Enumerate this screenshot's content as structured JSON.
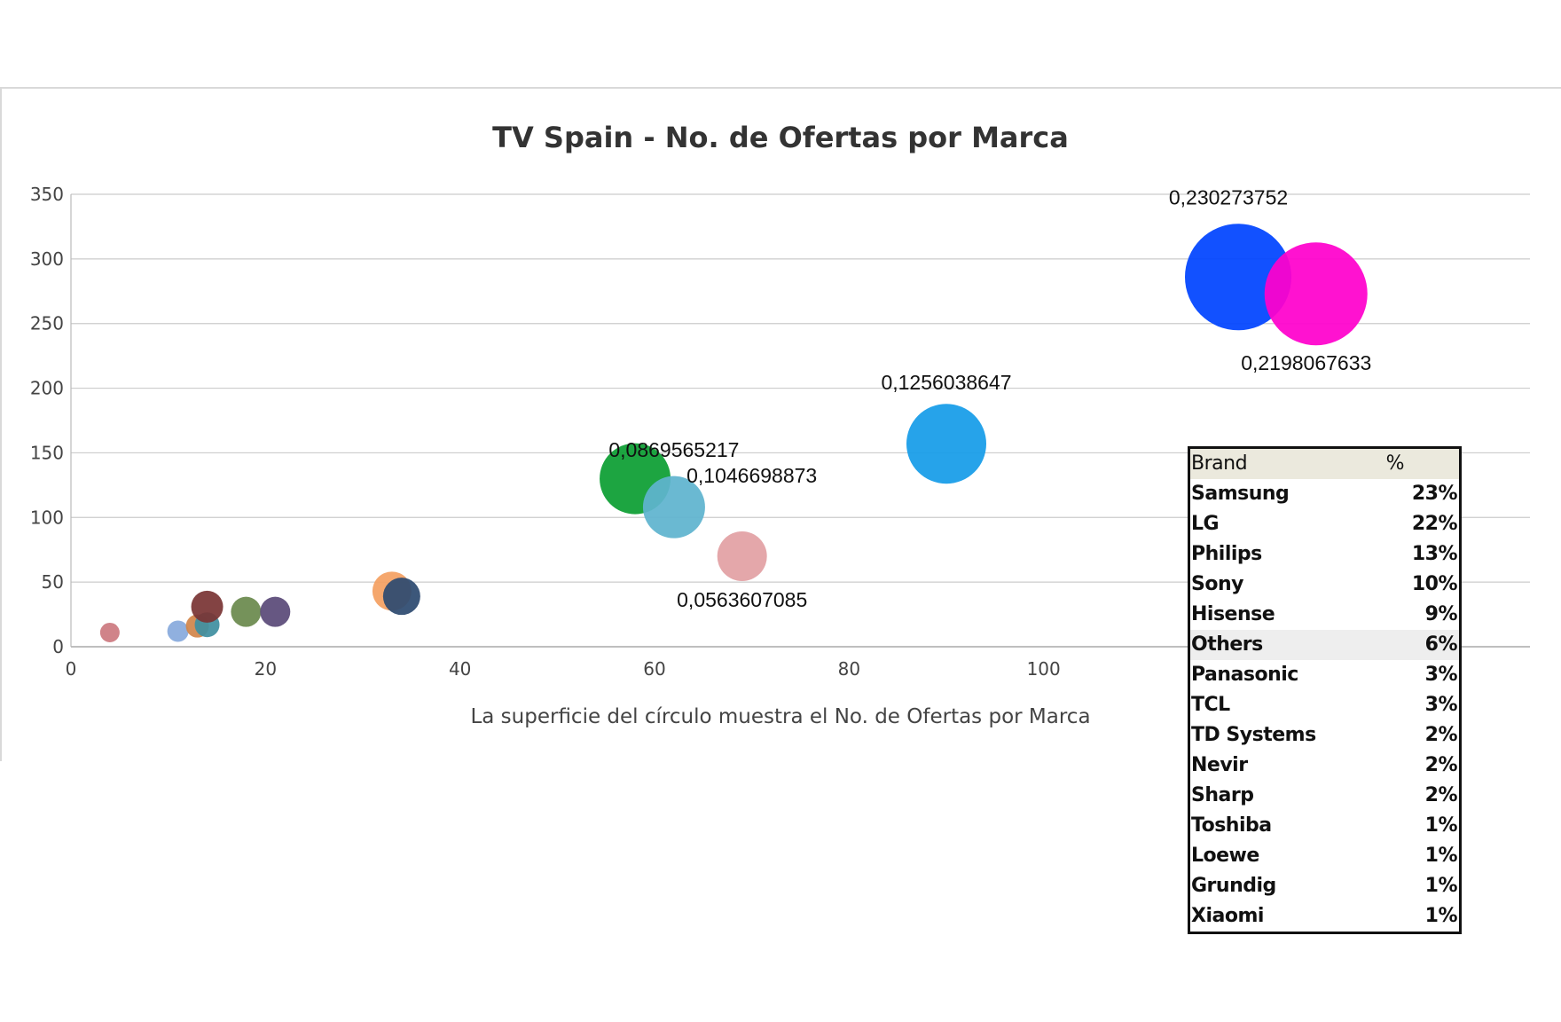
{
  "chart_data": {
    "type": "scatter",
    "title": "TV Spain - No. de Ofertas por Marca",
    "xlabel": "La superficie del círculo muestra el No. de Ofertas por Marca",
    "ylabel": "",
    "xlim": [
      0,
      150
    ],
    "ylim": [
      0,
      350
    ],
    "x_ticks": [
      "0",
      "20",
      "40",
      "60",
      "80",
      "100"
    ],
    "y_ticks": [
      "0",
      "50",
      "100",
      "150",
      "200",
      "250",
      "300",
      "350"
    ],
    "grid": true,
    "bubbles": [
      {
        "x": 4,
        "y": 11,
        "size": 11,
        "color": "#cc7a80"
      },
      {
        "x": 11,
        "y": 12,
        "size": 12,
        "color": "#88aadd"
      },
      {
        "x": 13,
        "y": 16,
        "size": 13,
        "color": "#d2854a"
      },
      {
        "x": 14,
        "y": 17,
        "size": 14,
        "color": "#3f8fa0"
      },
      {
        "x": 14,
        "y": 31,
        "size": 18,
        "color": "#7a3535"
      },
      {
        "x": 18,
        "y": 27,
        "size": 17,
        "color": "#6b8a4e"
      },
      {
        "x": 21,
        "y": 27,
        "size": 17,
        "color": "#5a4a78"
      },
      {
        "x": 33,
        "y": 43,
        "size": 22,
        "color": "#f4a062"
      },
      {
        "x": 34,
        "y": 39,
        "size": 21,
        "color": "#2d4a70"
      },
      {
        "x": 58,
        "y": 130,
        "size": 40,
        "color": "#0c9e33"
      },
      {
        "x": 62,
        "y": 108,
        "size": 35,
        "color": "#5fb4cf"
      },
      {
        "x": 69,
        "y": 70,
        "size": 28,
        "color": "#e2a0a4"
      },
      {
        "x": 90,
        "y": 157,
        "size": 45,
        "color": "#159ce8"
      },
      {
        "x": 120,
        "y": 286,
        "size": 60,
        "color": "#0044ff"
      },
      {
        "x": 128,
        "y": 273,
        "size": 58,
        "color": "#ff00cc"
      }
    ],
    "data_labels": [
      {
        "text": "0,230273752",
        "x": 119,
        "y": 342
      },
      {
        "text": "0,2198067633",
        "x": 127,
        "y": 214
      },
      {
        "text": "0,1256038647",
        "x": 90,
        "y": 199
      },
      {
        "text": "0,0869565217",
        "x": 62,
        "y": 147
      },
      {
        "text": "0,1046698873",
        "x": 70,
        "y": 127
      },
      {
        "text": "0,0563607085",
        "x": 69,
        "y": 31
      }
    ]
  },
  "legend_table": {
    "header": {
      "brand": "Brand",
      "pct": "%"
    },
    "rows": [
      {
        "brand": "Samsung",
        "pct": "23%"
      },
      {
        "brand": "LG",
        "pct": "22%"
      },
      {
        "brand": "Philips",
        "pct": "13%"
      },
      {
        "brand": "Sony",
        "pct": "10%"
      },
      {
        "brand": "Hisense",
        "pct": "9%"
      },
      {
        "brand": "Others",
        "pct": "6%"
      },
      {
        "brand": "Panasonic",
        "pct": "3%"
      },
      {
        "brand": "TCL",
        "pct": "3%"
      },
      {
        "brand": "TD Systems",
        "pct": "2%"
      },
      {
        "brand": "Nevir",
        "pct": "2%"
      },
      {
        "brand": "Sharp",
        "pct": "2%"
      },
      {
        "brand": "Toshiba",
        "pct": "1%"
      },
      {
        "brand": "Loewe",
        "pct": "1%"
      },
      {
        "brand": "Grundig",
        "pct": "1%"
      },
      {
        "brand": "Xiaomi",
        "pct": "1%"
      }
    ]
  }
}
